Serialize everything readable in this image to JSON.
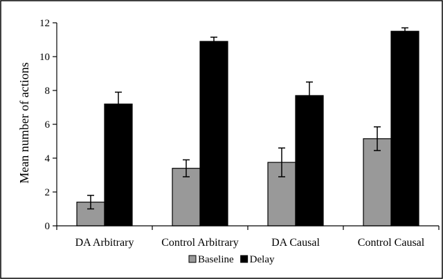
{
  "chart_data": {
    "type": "bar",
    "ylabel": "Mean number of actions",
    "xlabel": "",
    "ylim": [
      0,
      12
    ],
    "yticks": [
      0,
      2,
      4,
      6,
      8,
      10,
      12
    ],
    "categories": [
      "DA Arbitrary",
      "Control Arbitrary",
      "DA Causal",
      "Control Causal"
    ],
    "series": [
      {
        "name": "Baseline",
        "color": "#999999",
        "values": [
          1.4,
          3.4,
          3.75,
          5.15
        ],
        "error": [
          0.4,
          0.5,
          0.85,
          0.7
        ]
      },
      {
        "name": "Delay",
        "color": "#000000",
        "values": [
          7.2,
          10.9,
          7.7,
          11.5
        ],
        "error": [
          0.7,
          0.25,
          0.8,
          0.2
        ]
      }
    ],
    "grid": false,
    "legend_position": "bottom"
  }
}
